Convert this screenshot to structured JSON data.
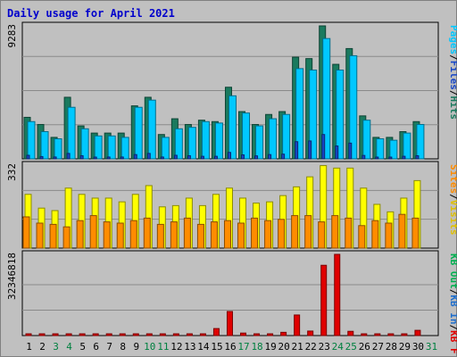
{
  "chart_data": {
    "type": "bar",
    "title": "Daily usage for April 2021",
    "categories": [
      "1",
      "2",
      "3",
      "4",
      "5",
      "6",
      "7",
      "8",
      "9",
      "10",
      "11",
      "12",
      "13",
      "14",
      "15",
      "16",
      "17",
      "18",
      "19",
      "20",
      "21",
      "22",
      "23",
      "24",
      "25",
      "26",
      "27",
      "28",
      "29",
      "30",
      "31"
    ],
    "weekend_days": [
      "3",
      "4",
      "10",
      "11",
      "17",
      "18",
      "24",
      "25",
      "31"
    ],
    "colors": {
      "hits": "#1a7a5e",
      "files": "#00c8ff",
      "pages": "#1646c8",
      "visits": "#ffff00",
      "sites": "#ff8c00",
      "kbin": "#00b050",
      "kbout": "#1e6ecc",
      "kbf": "#e00000",
      "weekday_label": "#000000",
      "weekend_label": "#008040"
    },
    "panels": [
      {
        "name": "hits-files-pages",
        "ymax_label": "9283",
        "ymax": 9283,
        "legend": [
          {
            "text": "Hits",
            "color": "#1a7a5e"
          },
          {
            "text": "/",
            "color": "#000000"
          },
          {
            "text": "Files",
            "color": "#1646c8"
          },
          {
            "text": "/",
            "color": "#000000"
          },
          {
            "text": "Pages",
            "color": "#00c8ff"
          }
        ],
        "series": [
          {
            "name": "Hits",
            "color": "#1a7a5e",
            "values": [
              2900,
              2400,
              1500,
              4300,
              2300,
              1800,
              1800,
              1800,
              3700,
              4300,
              1700,
              2800,
              2400,
              2700,
              2600,
              5000,
              3300,
              2400,
              3100,
              3300,
              7100,
              7000,
              9283,
              6600,
              7700,
              3000,
              1500,
              1500,
              1900,
              2600,
              0
            ]
          },
          {
            "name": "Files",
            "color": "#00c8ff",
            "values": [
              2600,
              1900,
              1400,
              3600,
              2100,
              1600,
              1600,
              1500,
              3600,
              4100,
              1500,
              2100,
              2200,
              2600,
              2500,
              4400,
              3200,
              2300,
              2800,
              3100,
              6300,
              6200,
              8400,
              6200,
              7200,
              2700,
              1400,
              1300,
              1800,
              2400,
              0
            ]
          },
          {
            "name": "Pages",
            "color": "#1646c8",
            "values": [
              250,
              160,
              130,
              380,
              220,
              120,
              130,
              130,
              300,
              380,
              130,
              250,
              220,
              180,
              180,
              450,
              280,
              210,
              300,
              330,
              1200,
              1250,
              1700,
              900,
              1100,
              240,
              120,
              120,
              180,
              220,
              0
            ]
          }
        ]
      },
      {
        "name": "visits-sites",
        "ymax_label": "332",
        "ymax": 332,
        "legend": [
          {
            "text": "Visits",
            "color": "#e0c000"
          },
          {
            "text": "/",
            "color": "#000000"
          },
          {
            "text": "Sites",
            "color": "#ff8c00"
          }
        ],
        "series": [
          {
            "name": "Visits",
            "color": "#ffff00",
            "values": [
              215,
              160,
              150,
              240,
              215,
              200,
              200,
              185,
              215,
              250,
              165,
              170,
              200,
              170,
              215,
              240,
              200,
              180,
              185,
              210,
              245,
              285,
              330,
              320,
              320,
              240,
              175,
              145,
              200,
              270,
              0
            ]
          },
          {
            "name": "Sites",
            "color": "#ff8c00",
            "values": [
              125,
              100,
              95,
              85,
              110,
              130,
              105,
              100,
              110,
              120,
              95,
              105,
              120,
              95,
              105,
              110,
              100,
              120,
              110,
              115,
              130,
              130,
              105,
              130,
              120,
              90,
              110,
              100,
              135,
              120,
              0
            ]
          }
        ]
      },
      {
        "name": "kbytes",
        "ymax_label": "32346818",
        "ymax": 32346818,
        "legend": [
          {
            "text": "KB F",
            "color": "#e00000"
          },
          {
            "text": "/",
            "color": "#000000"
          },
          {
            "text": "KB In",
            "color": "#1e6ecc"
          },
          {
            "text": "/",
            "color": "#000000"
          },
          {
            "text": "KB Out",
            "color": "#00b050"
          }
        ],
        "series": [
          {
            "name": "KB F",
            "color": "#e00000",
            "values": [
              300000,
              300000,
              300000,
              300000,
              300000,
              300000,
              300000,
              300000,
              300000,
              300000,
              300000,
              300000,
              300000,
              300000,
              2800000,
              9600000,
              1000000,
              300000,
              300000,
              1300000,
              8200000,
              1800000,
              28000000,
              32346818,
              1700000,
              300000,
              500000,
              300000,
              300000,
              2100000,
              0
            ]
          }
        ]
      }
    ]
  }
}
